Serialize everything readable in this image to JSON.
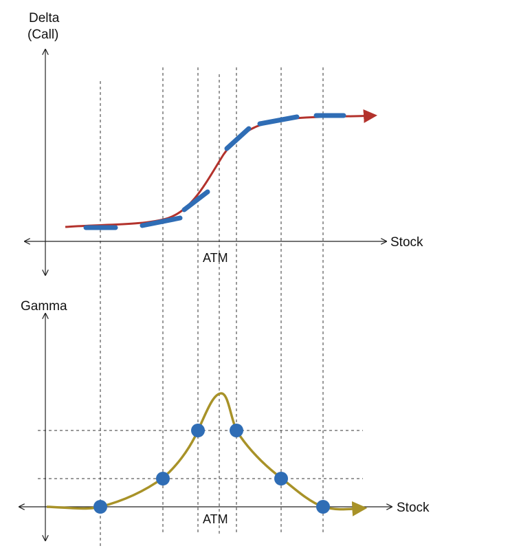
{
  "colors": {
    "axis": "#222222",
    "guide": "#333333",
    "delta_curve": "#b3322c",
    "tangent": "#2f6db5",
    "gamma_curve": "#a89228",
    "point": "#2f6db5"
  },
  "delta_chart": {
    "y_label_line1": "Delta",
    "y_label_line2": "(Call)",
    "x_label": "Stock",
    "atm_label": "ATM"
  },
  "gamma_chart": {
    "y_label": "Gamma",
    "x_label": "Stock",
    "atm_label": "ATM"
  }
}
